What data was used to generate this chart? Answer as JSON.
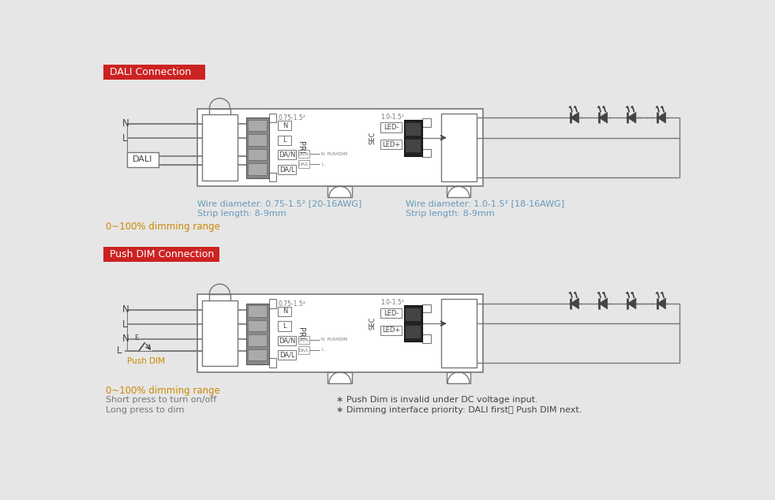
{
  "bg": "#e6e6e6",
  "lc": "#777777",
  "dc": "#444444",
  "rc": "#cc2222",
  "bc": "#6699bb",
  "oc": "#cc8800",
  "wc": "#ffffff",
  "dali_title": "DALI Connection",
  "push_title": "Push DIM Connection",
  "wire_pri": "Wire diameter: 0.75-1.5² [20-16AWG]",
  "strip_pri": "Strip length: 8-9mm",
  "wire_sec": "Wire diameter: 1.0-1.5² [18-16AWG]",
  "strip_sec": "Strip length: 8-9mm",
  "dim_range": "0~100% dimming range",
  "short_press": "Short press to turn on/off",
  "long_press": "Long press to dim",
  "note1": "∗ Push Dim is invalid under DC voltage input.",
  "note2": "∗ Dimming interface priority: DALI first， Push DIM next."
}
